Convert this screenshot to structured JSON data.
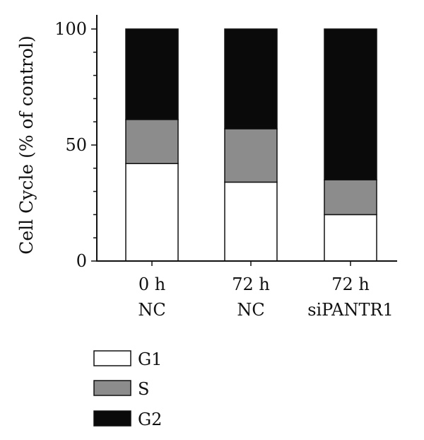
{
  "chart_data": {
    "type": "bar",
    "stacked": true,
    "categories": [
      [
        "0 h",
        "NC"
      ],
      [
        "72 h",
        "NC"
      ],
      [
        "72 h",
        "siPANTR1"
      ]
    ],
    "series": [
      {
        "name": "G1",
        "values": [
          42,
          34,
          20
        ],
        "color": "#ffffff"
      },
      {
        "name": "S",
        "values": [
          19,
          23,
          15
        ],
        "color": "#8c8c8c"
      },
      {
        "name": "G2",
        "values": [
          39,
          43,
          65
        ],
        "color": "#0a0a0a"
      }
    ],
    "ylabel": "Cell Cycle (% of control)",
    "xlabel": "",
    "ylim": [
      0,
      100
    ],
    "yticks": [
      0,
      50,
      100
    ],
    "grid": false,
    "legend_position": "bottom-left"
  }
}
